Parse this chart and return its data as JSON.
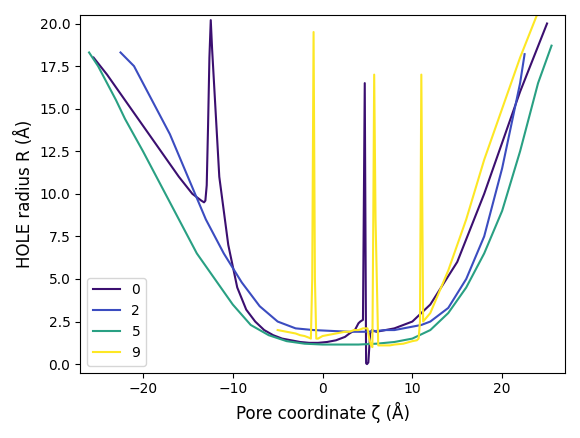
{
  "xlabel": "Pore coordinate ζ (Å)",
  "ylabel": "HOLE radius R (Å)",
  "xlim": [
    -27,
    27
  ],
  "ylim": [
    -0.5,
    20.5
  ],
  "legend_labels": [
    "0",
    "2",
    "5",
    "9"
  ],
  "colors": [
    "#3b0f70",
    "#3b4cc0",
    "#29a083",
    "#fde724"
  ],
  "linewidth": 1.5,
  "curve_0": {
    "z": [
      -25.5,
      -24,
      -22,
      -20,
      -18,
      -16,
      -14.5,
      -13.5,
      -13.2,
      -13.05,
      -12.9,
      -12.75,
      -12.6,
      -12.45,
      -12.3,
      -11.5,
      -10.5,
      -9.5,
      -8.5,
      -7.5,
      -6.5,
      -5.5,
      -4.5,
      -3.5,
      -2.5,
      -1.5,
      -0.5,
      0.5,
      1.5,
      2.0,
      2.5,
      3.0,
      3.3,
      3.6,
      3.8,
      4.0,
      4.2,
      4.5,
      4.7,
      4.85,
      4.95,
      5.1,
      5.3,
      5.5,
      6.0,
      7.0,
      8.0,
      9.0,
      10.0,
      12.0,
      15.0,
      18.0,
      22.0,
      25.0
    ],
    "r": [
      18.0,
      17.0,
      15.5,
      14.0,
      12.5,
      11.0,
      10.0,
      9.6,
      9.5,
      9.6,
      10.5,
      14.0,
      18.0,
      20.2,
      18.5,
      11.0,
      7.0,
      4.5,
      3.2,
      2.5,
      2.0,
      1.7,
      1.5,
      1.4,
      1.3,
      1.25,
      1.25,
      1.3,
      1.4,
      1.5,
      1.6,
      1.8,
      1.9,
      2.0,
      2.2,
      2.4,
      2.5,
      2.6,
      16.5,
      0.05,
      0.0,
      0.1,
      1.8,
      2.0,
      1.9,
      2.0,
      2.1,
      2.3,
      2.5,
      3.5,
      6.0,
      10.0,
      16.0,
      20.0
    ]
  },
  "curve_2": {
    "z": [
      -22.5,
      -21,
      -19,
      -17,
      -15,
      -13,
      -11,
      -9,
      -7,
      -5,
      -3,
      -1,
      1,
      3,
      5,
      7,
      8,
      9,
      10,
      11,
      12,
      14,
      16,
      18,
      20,
      22,
      22.5
    ],
    "r": [
      18.3,
      17.5,
      15.5,
      13.5,
      11.0,
      8.5,
      6.5,
      4.8,
      3.4,
      2.5,
      2.1,
      2.0,
      1.95,
      1.9,
      1.9,
      2.0,
      2.0,
      2.1,
      2.2,
      2.3,
      2.5,
      3.3,
      5.0,
      7.5,
      11.5,
      16.5,
      18.2
    ]
  },
  "curve_5": {
    "z": [
      -26.0,
      -25,
      -24,
      -23,
      -22,
      -20,
      -18,
      -16,
      -14,
      -12,
      -10,
      -8,
      -6,
      -4,
      -2,
      0,
      2,
      4,
      6,
      8,
      10,
      12,
      14,
      16,
      18,
      20,
      22,
      24,
      25.5
    ],
    "r": [
      18.3,
      17.5,
      16.5,
      15.5,
      14.4,
      12.5,
      10.5,
      8.5,
      6.5,
      5.0,
      3.5,
      2.3,
      1.7,
      1.35,
      1.2,
      1.15,
      1.15,
      1.15,
      1.2,
      1.3,
      1.5,
      2.0,
      3.0,
      4.5,
      6.5,
      9.0,
      12.5,
      16.5,
      18.7
    ]
  },
  "curve_9": {
    "z": [
      -5.0,
      -4.0,
      -3.0,
      -2.5,
      -2.0,
      -1.5,
      -1.3,
      -1.15,
      -1.0,
      -0.85,
      -0.7,
      -0.5,
      0.0,
      0.5,
      1.0,
      1.5,
      2.0,
      2.5,
      3.0,
      3.5,
      4.0,
      4.5,
      5.0,
      5.2,
      5.4,
      5.55,
      5.65,
      5.75,
      5.9,
      6.2,
      6.5,
      7.0,
      7.5,
      8.0,
      9.0,
      10.0,
      10.5,
      10.7,
      10.85,
      11.0,
      11.2,
      12.0,
      14.0,
      16.0,
      18.0,
      20.0,
      22.0,
      25.0
    ],
    "r": [
      2.0,
      1.9,
      1.8,
      1.7,
      1.65,
      1.55,
      1.5,
      5.0,
      19.5,
      5.0,
      1.5,
      1.5,
      1.65,
      1.7,
      1.75,
      1.8,
      1.85,
      1.9,
      1.9,
      2.0,
      2.0,
      2.1,
      2.1,
      1.5,
      1.1,
      1.0,
      8.5,
      17.0,
      8.5,
      1.1,
      1.1,
      1.1,
      1.1,
      1.15,
      1.2,
      1.35,
      1.4,
      1.5,
      2.5,
      17.0,
      2.5,
      3.0,
      5.5,
      8.5,
      12.0,
      15.0,
      18.0,
      22.0
    ]
  }
}
